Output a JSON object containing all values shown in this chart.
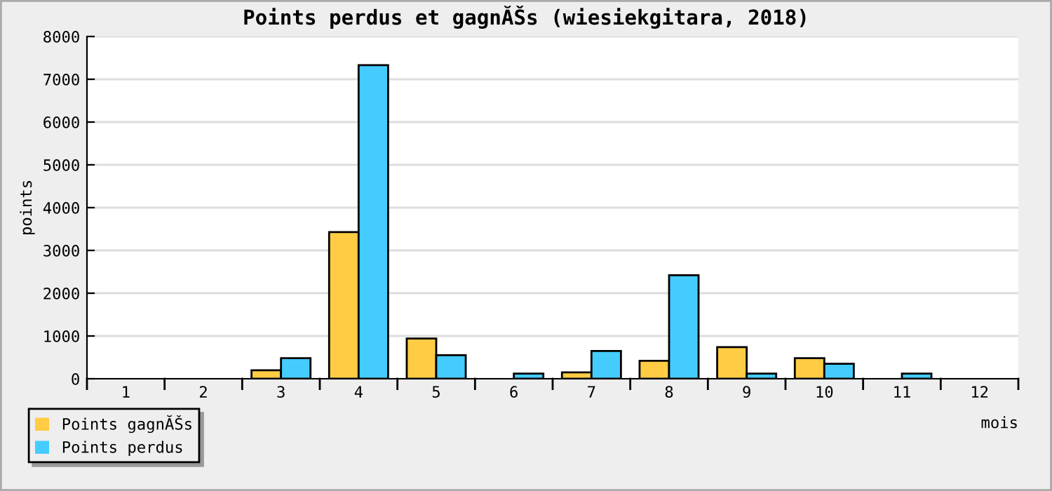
{
  "chart_data": {
    "type": "bar",
    "title": "Points perdus et gagnĂŠs (wiesiekgitara, 2018)",
    "xlabel": "mois",
    "ylabel": "points",
    "categories": [
      "1",
      "2",
      "3",
      "4",
      "5",
      "6",
      "7",
      "8",
      "9",
      "10",
      "11",
      "12"
    ],
    "series": [
      {
        "name": "Points gagnĂŠs",
        "color": "#ffcc44",
        "values": [
          0,
          0,
          200,
          3430,
          940,
          0,
          150,
          420,
          740,
          480,
          0,
          0
        ]
      },
      {
        "name": "Points perdus",
        "color": "#44ccff",
        "values": [
          0,
          0,
          480,
          7330,
          550,
          120,
          650,
          2420,
          120,
          350,
          120,
          0
        ]
      }
    ],
    "ylim": [
      0,
      8000
    ],
    "yticks": [
      0,
      1000,
      2000,
      3000,
      4000,
      5000,
      6000,
      7000,
      8000
    ],
    "grid": "y",
    "legend": "bottom left"
  }
}
